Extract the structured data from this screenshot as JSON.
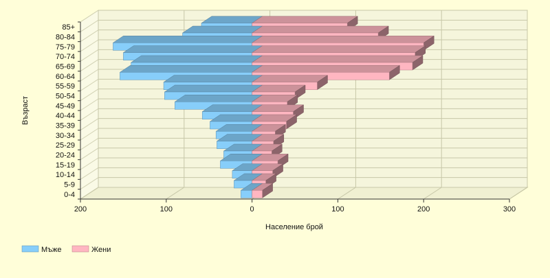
{
  "chart_data": {
    "type": "bar",
    "orientation": "horizontal",
    "style": "population-pyramid-3d",
    "categories": [
      "0-4",
      "5-9",
      "10-14",
      "15-19",
      "20-24",
      "25-29",
      "30-34",
      "35-39",
      "40-44",
      "45-49",
      "50-54",
      "55-59",
      "60-64",
      "65-69",
      "70-74",
      "75-79",
      "80-84",
      "85+"
    ],
    "series": [
      {
        "name": "Мъже",
        "color": "#87cefa",
        "values": [
          13,
          21,
          23,
          37,
          33,
          41,
          42,
          49,
          58,
          90,
          102,
          103,
          154,
          141,
          150,
          162,
          81,
          59
        ]
      },
      {
        "name": "Жени",
        "color": "#ffb6c1",
        "values": [
          12,
          16,
          24,
          30,
          23,
          25,
          27,
          40,
          48,
          41,
          50,
          76,
          160,
          187,
          190,
          200,
          147,
          111
        ]
      }
    ],
    "xlabel": "Население брой",
    "ylabel": "Възраст",
    "xlim": [
      -200,
      300
    ],
    "xticks": [
      -200,
      -100,
      0,
      100,
      200,
      300
    ],
    "xtick_labels": [
      "200",
      "100",
      "0",
      "100",
      "200",
      "300"
    ],
    "grid": true,
    "legend_position": "bottom-left"
  }
}
